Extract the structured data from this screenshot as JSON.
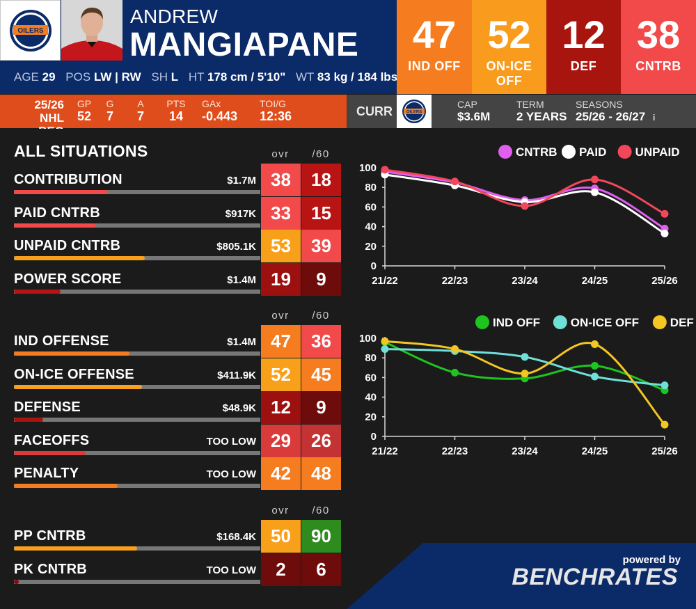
{
  "player": {
    "first_name": "ANDREW",
    "last_name": "MANGIAPANE",
    "age_label": "AGE",
    "age": "29",
    "pos_label": "POS",
    "pos": "LW | RW",
    "sh_label": "SH",
    "sh": "L",
    "ht_label": "HT",
    "ht": "178 cm / 5'10\"",
    "wt_label": "WT",
    "wt": "83 kg / 184 lbs"
  },
  "team_logo_text": "OILERS",
  "top_ratings": [
    {
      "value": "47",
      "label": "IND OFF",
      "color": "#f57c1f"
    },
    {
      "value": "52",
      "label": "ON-ICE OFF",
      "color": "#f99b1c"
    },
    {
      "value": "12",
      "label": "DEF",
      "color": "#a8150f"
    },
    {
      "value": "38",
      "label": "CNTRB",
      "color": "#f24a4a"
    }
  ],
  "season_stats": {
    "season": "25/26",
    "league": "NHL REG",
    "cols": [
      {
        "h": "GP",
        "v": "52"
      },
      {
        "h": "G",
        "v": "7"
      },
      {
        "h": "A",
        "v": "7"
      },
      {
        "h": "PTS",
        "v": "14"
      },
      {
        "h": "GAx",
        "v": "-0.443"
      },
      {
        "h": "TOI/G",
        "v": "12:36"
      }
    ]
  },
  "contract": {
    "curr": "CURR",
    "cap_label": "CAP",
    "cap": "$3.6M",
    "term_label": "TERM",
    "term": "2 YEARS",
    "seasons_label": "SEASONS",
    "seasons": "25/26 - 26/27",
    "info": "i"
  },
  "left": {
    "title": "ALL SITUATIONS",
    "ovr": "ovr",
    "p60": "/60",
    "group1": [
      {
        "name": "CONTRIBUTION",
        "value": "$1.7M",
        "ovr": "38",
        "p60": "18",
        "pct": 0.38,
        "fill": "#f24a4a",
        "ovr_bg": "#f24a4a",
        "p60_bg": "#b81414"
      },
      {
        "name": "PAID CNTRB",
        "value": "$917K",
        "ovr": "33",
        "p60": "15",
        "pct": 0.33,
        "fill": "#f24a4a",
        "ovr_bg": "#f24a4a",
        "p60_bg": "#b81414"
      },
      {
        "name": "UNPAID CNTRB",
        "value": "$805.1K",
        "ovr": "53",
        "p60": "39",
        "pct": 0.53,
        "fill": "#f9a01b",
        "ovr_bg": "#f9a01b",
        "p60_bg": "#f24a4a"
      },
      {
        "name": "POWER SCORE",
        "value": "$1.4M",
        "ovr": "19",
        "p60": "9",
        "pct": 0.19,
        "fill": "#b81414",
        "ovr_bg": "#9c1010",
        "p60_bg": "#6e0b0b"
      }
    ],
    "group2": [
      {
        "name": "IND OFFENSE",
        "value": "$1.4M",
        "ovr": "47",
        "p60": "36",
        "pct": 0.47,
        "fill": "#f57c1f",
        "ovr_bg": "#f57c1f",
        "p60_bg": "#f24a4a"
      },
      {
        "name": "ON-ICE OFFENSE",
        "value": "$411.9K",
        "ovr": "52",
        "p60": "45",
        "pct": 0.52,
        "fill": "#f9a01b",
        "ovr_bg": "#f9a01b",
        "p60_bg": "#f57c1f"
      },
      {
        "name": "DEFENSE",
        "value": "$48.9K",
        "ovr": "12",
        "p60": "9",
        "pct": 0.12,
        "fill": "#a8150f",
        "ovr_bg": "#9c1010",
        "p60_bg": "#6e0b0b"
      },
      {
        "name": "FACEOFFS",
        "value": "TOO LOW",
        "ovr": "29",
        "p60": "26",
        "pct": 0.29,
        "fill": "#d93a3a",
        "ovr_bg": "#d93a3a",
        "p60_bg": "#c43333"
      },
      {
        "name": "PENALTY",
        "value": "TOO LOW",
        "ovr": "42",
        "p60": "48",
        "pct": 0.42,
        "fill": "#f57c1f",
        "ovr_bg": "#f57c1f",
        "p60_bg": "#f57c1f"
      }
    ],
    "group3": [
      {
        "name": "PP CNTRB",
        "value": "$168.4K",
        "ovr": "50",
        "p60": "90",
        "pct": 0.5,
        "fill": "#f9a01b",
        "ovr_bg": "#f9a01b",
        "p60_bg": "#2e8b1e"
      },
      {
        "name": "PK CNTRB",
        "value": "TOO LOW",
        "ovr": "2",
        "p60": "6",
        "pct": 0.02,
        "fill": "#8a0b0b",
        "ovr_bg": "#6e0b0b",
        "p60_bg": "#6e0b0b"
      }
    ]
  },
  "chart_data": [
    {
      "type": "line",
      "x": [
        "21/22",
        "22/23",
        "23/24",
        "24/25",
        "25/26"
      ],
      "ylim": [
        0,
        100
      ],
      "yticks": [
        0,
        20,
        40,
        60,
        80,
        100
      ],
      "legend_position": "top-right",
      "series": [
        {
          "name": "CNTRB",
          "color": "#e05ef0",
          "values": [
            96,
            85,
            67,
            79,
            38
          ]
        },
        {
          "name": "PAID",
          "color": "#ffffff",
          "values": [
            93,
            82,
            65,
            75,
            33
          ]
        },
        {
          "name": "UNPAID",
          "color": "#f2475b",
          "values": [
            98,
            86,
            61,
            88,
            53
          ]
        }
      ]
    },
    {
      "type": "line",
      "x": [
        "21/22",
        "22/23",
        "23/24",
        "24/25",
        "25/26"
      ],
      "ylim": [
        0,
        100
      ],
      "yticks": [
        0,
        20,
        40,
        60,
        80,
        100
      ],
      "legend_position": "top-right",
      "series": [
        {
          "name": "IND OFF",
          "color": "#1ec51e",
          "values": [
            96,
            65,
            59,
            72,
            47
          ]
        },
        {
          "name": "ON-ICE OFF",
          "color": "#6ee0d8",
          "values": [
            89,
            87,
            81,
            61,
            52
          ]
        },
        {
          "name": "DEF",
          "color": "#f3c624",
          "values": [
            97,
            89,
            64,
            94,
            12
          ]
        }
      ]
    }
  ],
  "brand": {
    "powered": "powered by",
    "name": "BENCHRATES"
  }
}
